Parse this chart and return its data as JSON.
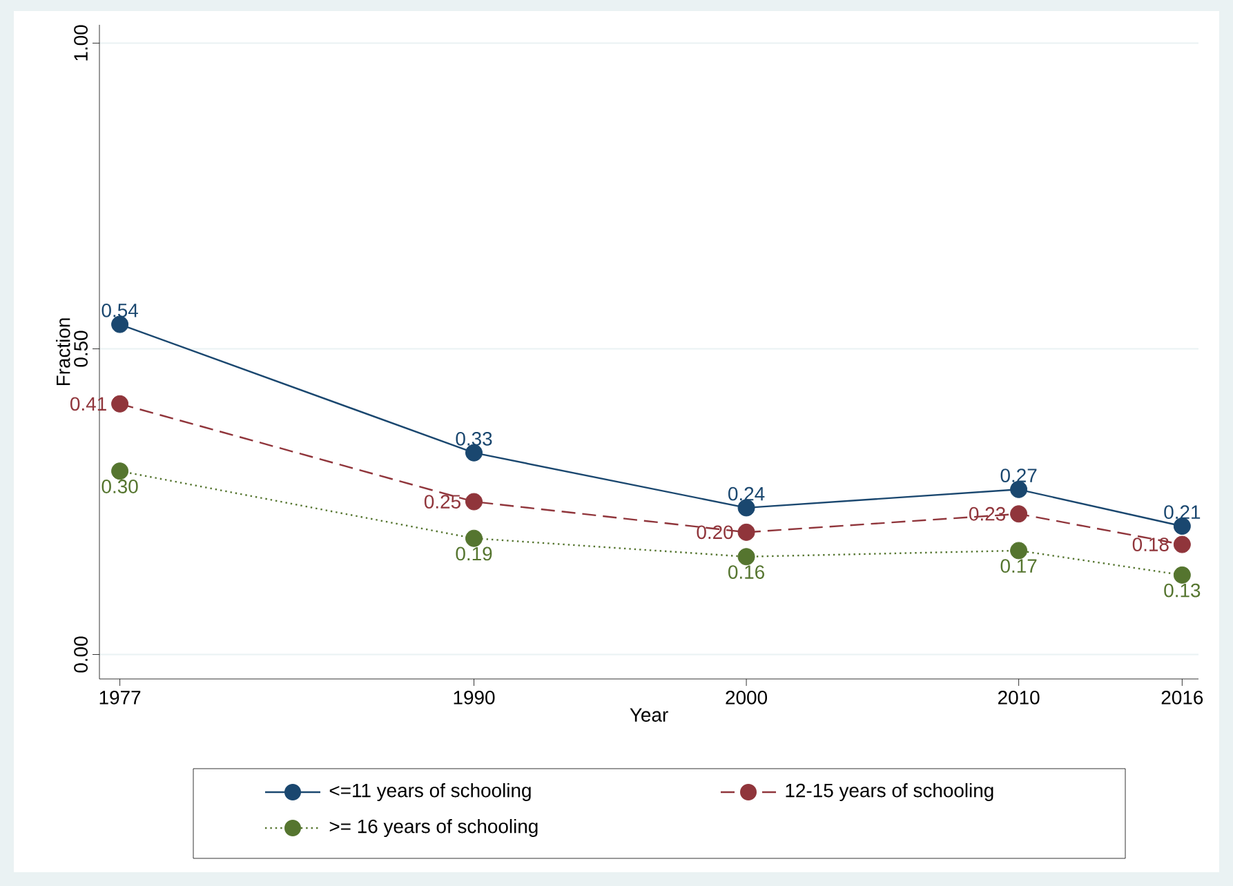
{
  "chart_data": {
    "type": "line",
    "xlabel": "Year",
    "ylabel": "Fraction",
    "x": [
      1977,
      1990,
      2000,
      2010,
      2016
    ],
    "series": [
      {
        "name": "<=11 years of schooling",
        "color": "#1a476f",
        "line_style": "solid",
        "values": [
          0.54,
          0.33,
          0.24,
          0.27,
          0.21
        ],
        "value_labels": [
          "0.54",
          "0.33",
          "0.24",
          "0.27",
          "0.21"
        ]
      },
      {
        "name": "12-15 years of schooling",
        "color": "#90353b",
        "line_style": "dashed",
        "values": [
          0.41,
          0.25,
          0.2,
          0.23,
          0.18
        ],
        "value_labels": [
          "0.41",
          "0.25",
          "0.20",
          "0.23",
          "0.18"
        ]
      },
      {
        "name": ">= 16 years of schooling",
        "color": "#55752f",
        "line_style": "dotted",
        "values": [
          0.3,
          0.19,
          0.16,
          0.17,
          0.13
        ],
        "value_labels": [
          "0.30",
          "0.19",
          "0.16",
          "0.17",
          "0.13"
        ]
      }
    ],
    "xlim": [
      1976.25,
      2016.6
    ],
    "ylim": [
      -0.04,
      1.03
    ],
    "xticks": [
      1977,
      1990,
      2000,
      2010,
      2016
    ],
    "yticks": [
      {
        "value": 0,
        "label": "0.00"
      },
      {
        "value": 0.5,
        "label": "0.50"
      },
      {
        "value": 1,
        "label": "1.00"
      }
    ],
    "grid": "y",
    "legend": "bottom",
    "marker": "circle"
  }
}
